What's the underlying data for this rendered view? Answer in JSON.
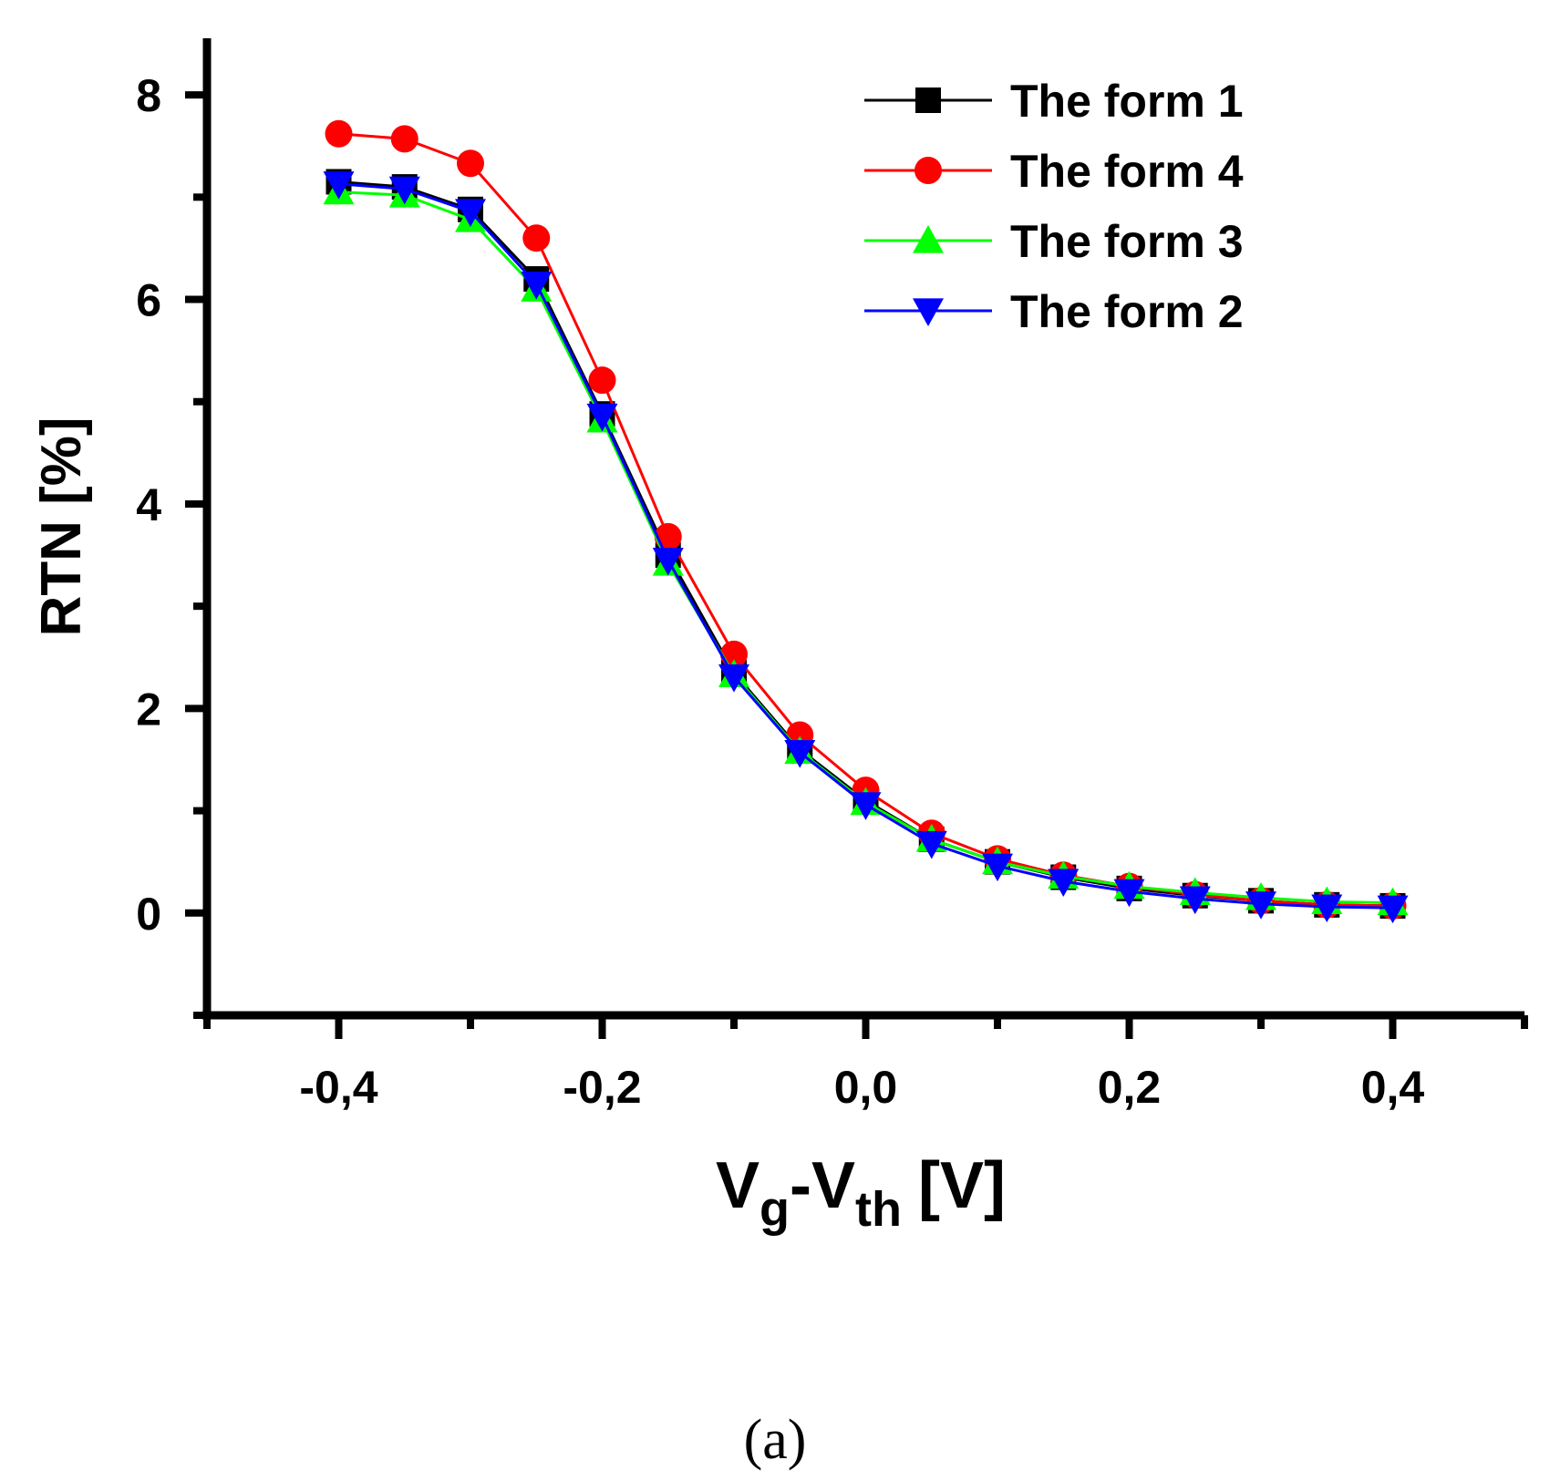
{
  "chart_data": {
    "type": "line",
    "title": "",
    "xlabel": {
      "main": "V",
      "sub1": "g",
      "mid": "-V",
      "sub2": "th",
      "unit": "[V]"
    },
    "ylabel": "RTN [%]",
    "caption": "(a)",
    "xlim": [
      -0.5,
      0.5
    ],
    "ylim": [
      -1,
      8.5
    ],
    "xticks": [
      -0.4,
      -0.2,
      0.0,
      0.2,
      0.4
    ],
    "xtick_labels": [
      "-0,4",
      "-0,2",
      "0,0",
      "0,2",
      "0,4"
    ],
    "xminor": [
      -0.5,
      -0.3,
      -0.1,
      0.1,
      0.3,
      0.5
    ],
    "yticks": [
      0,
      2,
      4,
      6,
      8
    ],
    "ytick_labels": [
      "0",
      "2",
      "4",
      "6",
      "8"
    ],
    "yminor": [
      -1,
      1,
      3,
      5,
      7
    ],
    "x": [
      -0.4,
      -0.35,
      -0.3,
      -0.25,
      -0.2,
      -0.15,
      -0.1,
      -0.05,
      0.0,
      0.05,
      0.1,
      0.15,
      0.2,
      0.25,
      0.3,
      0.35,
      0.4
    ],
    "series": [
      {
        "name": "The form 1",
        "color": "#000000",
        "marker": "square",
        "values": [
          7.15,
          7.1,
          6.88,
          6.2,
          4.88,
          3.5,
          2.35,
          1.6,
          1.1,
          0.72,
          0.5,
          0.35,
          0.24,
          0.17,
          0.12,
          0.08,
          0.07
        ]
      },
      {
        "name": "The form 4",
        "color": "#ff0000",
        "marker": "circle",
        "values": [
          7.62,
          7.57,
          7.33,
          6.6,
          5.21,
          3.68,
          2.53,
          1.74,
          1.2,
          0.78,
          0.53,
          0.37,
          0.26,
          0.18,
          0.12,
          0.08,
          0.07
        ]
      },
      {
        "name": "The form 3",
        "color": "#00ff00",
        "marker": "triangle-up",
        "values": [
          7.05,
          7.02,
          6.78,
          6.1,
          4.82,
          3.42,
          2.33,
          1.58,
          1.08,
          0.72,
          0.5,
          0.36,
          0.26,
          0.2,
          0.15,
          0.11,
          0.1
        ]
      },
      {
        "name": "The form 2",
        "color": "#0000ff",
        "marker": "triangle-down",
        "values": [
          7.13,
          7.08,
          6.86,
          6.15,
          4.86,
          3.45,
          2.31,
          1.57,
          1.06,
          0.68,
          0.46,
          0.31,
          0.21,
          0.14,
          0.09,
          0.06,
          0.05
        ]
      }
    ],
    "legend_position": "top-right",
    "legend_order": [
      0,
      1,
      2,
      3
    ]
  }
}
